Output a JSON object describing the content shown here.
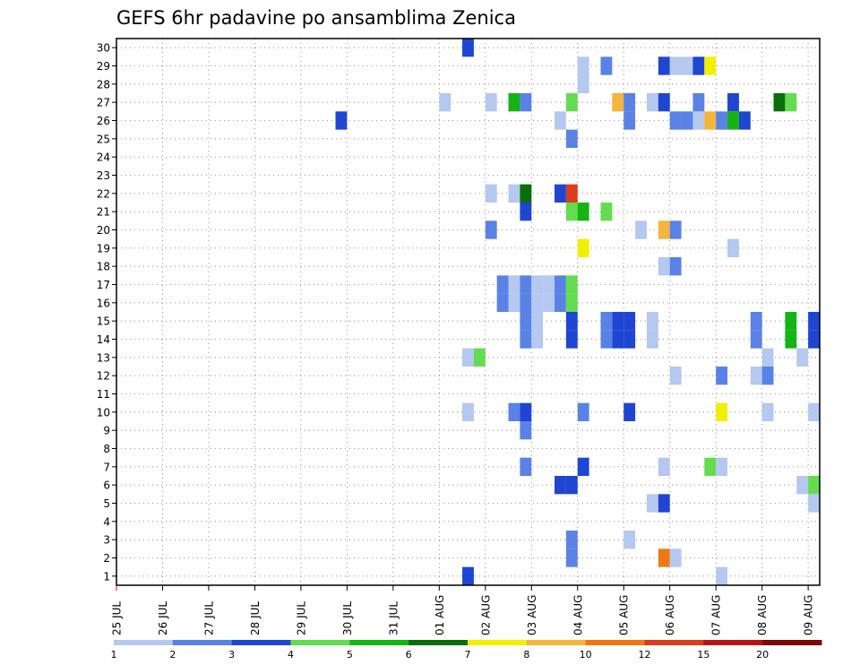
{
  "chart_data": {
    "type": "heatmap",
    "title": "GEFS 6hr padavine po ansamblima Zenica",
    "xlabel": "",
    "ylabel": "",
    "x_tick_labels": [
      "25 JUL",
      "26 JUL",
      "27 JUL",
      "28 JUL",
      "29 JUL",
      "30 JUL",
      "31 JUL",
      "01 AUG",
      "02 AUG",
      "03 AUG",
      "04 AUG",
      "05 AUG",
      "06 AUG",
      "07 AUG",
      "08 AUG",
      "09 AUG"
    ],
    "x_range_days": [
      0,
      15.25
    ],
    "y_tick_labels": [
      "1",
      "2",
      "3",
      "4",
      "5",
      "6",
      "7",
      "8",
      "9",
      "10",
      "11",
      "12",
      "13",
      "14",
      "15",
      "16",
      "17",
      "18",
      "19",
      "20",
      "21",
      "22",
      "23",
      "24",
      "25",
      "26",
      "27",
      "28",
      "29",
      "30"
    ],
    "y_range": [
      0.5,
      30.5
    ],
    "grid": true,
    "cell_width_days": 0.25,
    "colorbar": {
      "labels": [
        "1",
        "2",
        "3",
        "4",
        "5",
        "6",
        "7",
        "8",
        "10",
        "12",
        "15",
        "20"
      ],
      "colors": [
        "#b4c8f0",
        "#5a82e6",
        "#1e46d2",
        "#64dc50",
        "#14b414",
        "#0a6e0a",
        "#f0f000",
        "#f5b43c",
        "#f07814",
        "#dc3c1e",
        "#b41414",
        "#780a0a"
      ]
    },
    "cells": [
      {
        "member": 30,
        "day": 7.5,
        "level": 3
      },
      {
        "member": 29,
        "day": 10,
        "level": 1
      },
      {
        "member": 29,
        "day": 10.5,
        "level": 2
      },
      {
        "member": 29,
        "day": 11.75,
        "level": 3
      },
      {
        "member": 29,
        "day": 12,
        "level": 1
      },
      {
        "member": 29,
        "day": 12.25,
        "level": 1
      },
      {
        "member": 29,
        "day": 12.5,
        "level": 3
      },
      {
        "member": 29,
        "day": 12.75,
        "level": 7
      },
      {
        "member": 28,
        "day": 10,
        "level": 1
      },
      {
        "member": 27,
        "day": 7,
        "level": 1
      },
      {
        "member": 27,
        "day": 8,
        "level": 1
      },
      {
        "member": 27,
        "day": 8.5,
        "level": 5
      },
      {
        "member": 27,
        "day": 8.75,
        "level": 2
      },
      {
        "member": 27,
        "day": 9.75,
        "level": 4
      },
      {
        "member": 27,
        "day": 10.75,
        "level": 8
      },
      {
        "member": 27,
        "day": 11,
        "level": 2
      },
      {
        "member": 27,
        "day": 11.5,
        "level": 1
      },
      {
        "member": 27,
        "day": 11.75,
        "level": 3
      },
      {
        "member": 27,
        "day": 12.5,
        "level": 2
      },
      {
        "member": 27,
        "day": 13.25,
        "level": 3
      },
      {
        "member": 27,
        "day": 14.25,
        "level": 6
      },
      {
        "member": 27,
        "day": 14.5,
        "level": 4
      },
      {
        "member": 26,
        "day": 4.75,
        "level": 3
      },
      {
        "member": 26,
        "day": 9.5,
        "level": 1
      },
      {
        "member": 26,
        "day": 11,
        "level": 2
      },
      {
        "member": 26,
        "day": 12,
        "level": 2
      },
      {
        "member": 26,
        "day": 12.25,
        "level": 2
      },
      {
        "member": 26,
        "day": 12.5,
        "level": 1
      },
      {
        "member": 26,
        "day": 12.75,
        "level": 8
      },
      {
        "member": 26,
        "day": 13,
        "level": 2
      },
      {
        "member": 26,
        "day": 13.25,
        "level": 5
      },
      {
        "member": 26,
        "day": 13.5,
        "level": 3
      },
      {
        "member": 25,
        "day": 9.75,
        "level": 2
      },
      {
        "member": 22,
        "day": 8,
        "level": 1
      },
      {
        "member": 22,
        "day": 8.5,
        "level": 1
      },
      {
        "member": 22,
        "day": 8.75,
        "level": 6
      },
      {
        "member": 22,
        "day": 9.5,
        "level": 3
      },
      {
        "member": 22,
        "day": 9.75,
        "level": 10
      },
      {
        "member": 21,
        "day": 8.75,
        "level": 3
      },
      {
        "member": 21,
        "day": 9.75,
        "level": 4
      },
      {
        "member": 21,
        "day": 10,
        "level": 5
      },
      {
        "member": 21,
        "day": 10.5,
        "level": 4
      },
      {
        "member": 20,
        "day": 8,
        "level": 2
      },
      {
        "member": 20,
        "day": 11.25,
        "level": 1
      },
      {
        "member": 20,
        "day": 11.75,
        "level": 8
      },
      {
        "member": 20,
        "day": 12,
        "level": 2
      },
      {
        "member": 19,
        "day": 10,
        "level": 7
      },
      {
        "member": 19,
        "day": 13.25,
        "level": 1
      },
      {
        "member": 18,
        "day": 11.75,
        "level": 1
      },
      {
        "member": 18,
        "day": 12,
        "level": 2
      },
      {
        "member": 17,
        "day": 8.25,
        "level": 2
      },
      {
        "member": 17,
        "day": 8.5,
        "level": 1
      },
      {
        "member": 17,
        "day": 8.75,
        "level": 2
      },
      {
        "member": 17,
        "day": 9,
        "level": 1
      },
      {
        "member": 17,
        "day": 9.25,
        "level": 1
      },
      {
        "member": 17,
        "day": 9.5,
        "level": 2
      },
      {
        "member": 17,
        "day": 9.75,
        "level": 4
      },
      {
        "member": 16,
        "day": 8.25,
        "level": 2
      },
      {
        "member": 16,
        "day": 8.5,
        "level": 1
      },
      {
        "member": 16,
        "day": 8.75,
        "level": 2
      },
      {
        "member": 16,
        "day": 9,
        "level": 1
      },
      {
        "member": 16,
        "day": 9.25,
        "level": 1
      },
      {
        "member": 16,
        "day": 9.5,
        "level": 2
      },
      {
        "member": 16,
        "day": 9.75,
        "level": 4
      },
      {
        "member": 15,
        "day": 8.75,
        "level": 2
      },
      {
        "member": 15,
        "day": 9,
        "level": 1
      },
      {
        "member": 15,
        "day": 9.75,
        "level": 3
      },
      {
        "member": 15,
        "day": 10.5,
        "level": 2
      },
      {
        "member": 15,
        "day": 10.75,
        "level": 3
      },
      {
        "member": 15,
        "day": 11,
        "level": 3
      },
      {
        "member": 15,
        "day": 11.5,
        "level": 1
      },
      {
        "member": 15,
        "day": 13.75,
        "level": 2
      },
      {
        "member": 15,
        "day": 14.5,
        "level": 5
      },
      {
        "member": 15,
        "day": 15,
        "level": 3
      },
      {
        "member": 14,
        "day": 8.75,
        "level": 2
      },
      {
        "member": 14,
        "day": 9,
        "level": 1
      },
      {
        "member": 14,
        "day": 9.75,
        "level": 3
      },
      {
        "member": 14,
        "day": 10.5,
        "level": 2
      },
      {
        "member": 14,
        "day": 10.75,
        "level": 3
      },
      {
        "member": 14,
        "day": 11,
        "level": 3
      },
      {
        "member": 14,
        "day": 11.5,
        "level": 1
      },
      {
        "member": 14,
        "day": 13.75,
        "level": 2
      },
      {
        "member": 14,
        "day": 14.5,
        "level": 5
      },
      {
        "member": 14,
        "day": 15,
        "level": 3
      },
      {
        "member": 13,
        "day": 7.5,
        "level": 1
      },
      {
        "member": 13,
        "day": 7.75,
        "level": 4
      },
      {
        "member": 13,
        "day": 14,
        "level": 1
      },
      {
        "member": 13,
        "day": 14.75,
        "level": 1
      },
      {
        "member": 12,
        "day": 12,
        "level": 1
      },
      {
        "member": 12,
        "day": 13,
        "level": 2
      },
      {
        "member": 12,
        "day": 13.75,
        "level": 1
      },
      {
        "member": 12,
        "day": 14,
        "level": 2
      },
      {
        "member": 10,
        "day": 7.5,
        "level": 1
      },
      {
        "member": 10,
        "day": 8.5,
        "level": 2
      },
      {
        "member": 10,
        "day": 8.75,
        "level": 3
      },
      {
        "member": 10,
        "day": 10,
        "level": 2
      },
      {
        "member": 10,
        "day": 11,
        "level": 3
      },
      {
        "member": 10,
        "day": 13,
        "level": 7
      },
      {
        "member": 10,
        "day": 14,
        "level": 1
      },
      {
        "member": 10,
        "day": 15,
        "level": 1
      },
      {
        "member": 9,
        "day": 8.75,
        "level": 2
      },
      {
        "member": 7,
        "day": 8.75,
        "level": 2
      },
      {
        "member": 7,
        "day": 10,
        "level": 3
      },
      {
        "member": 7,
        "day": 11.75,
        "level": 1
      },
      {
        "member": 7,
        "day": 12.75,
        "level": 4
      },
      {
        "member": 7,
        "day": 13,
        "level": 1
      },
      {
        "member": 6,
        "day": 9.5,
        "level": 3
      },
      {
        "member": 6,
        "day": 9.75,
        "level": 3
      },
      {
        "member": 6,
        "day": 14.75,
        "level": 1
      },
      {
        "member": 6,
        "day": 15,
        "level": 4
      },
      {
        "member": 5,
        "day": 11.5,
        "level": 1
      },
      {
        "member": 5,
        "day": 11.75,
        "level": 3
      },
      {
        "member": 5,
        "day": 15,
        "level": 1
      },
      {
        "member": 3,
        "day": 9.75,
        "level": 2
      },
      {
        "member": 3,
        "day": 11,
        "level": 1
      },
      {
        "member": 2,
        "day": 9.75,
        "level": 2
      },
      {
        "member": 2,
        "day": 11.75,
        "level": 9
      },
      {
        "member": 2,
        "day": 12,
        "level": 1
      },
      {
        "member": 1,
        "day": 7.5,
        "level": 3
      },
      {
        "member": 1,
        "day": 13,
        "level": 1
      }
    ]
  }
}
